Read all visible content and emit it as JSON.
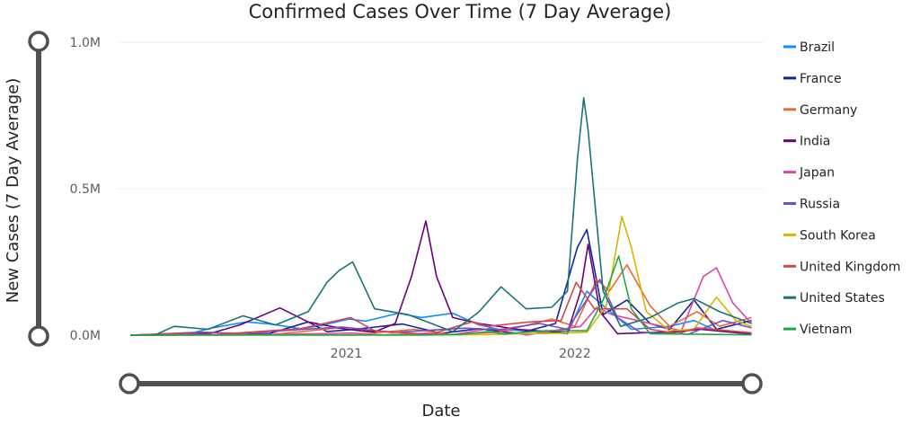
{
  "chart_data": {
    "type": "line",
    "title": "Confirmed Cases Over Time (7 Day Average)",
    "xlabel": "Date",
    "ylabel": "New Cases (7 Day Average)",
    "ylim": [
      0,
      1000000
    ],
    "xlim": [
      "2020-01-22",
      "2022-10-15"
    ],
    "y_ticks": [
      {
        "value": 0,
        "label": "0.0M"
      },
      {
        "value": 500000,
        "label": "0.5M"
      },
      {
        "value": 1000000,
        "label": "1.0M"
      }
    ],
    "x_ticks": [
      {
        "value": "2021-01-01",
        "label": "2021"
      },
      {
        "value": "2022-01-01",
        "label": "2022"
      }
    ],
    "grid": true,
    "legend_position": "right",
    "series": [
      {
        "name": "Brazil",
        "color": "#118dff",
        "points": [
          [
            "2020-01-22",
            0
          ],
          [
            "2020-03-15",
            1000
          ],
          [
            "2020-05-01",
            8000
          ],
          [
            "2020-06-01",
            25000
          ],
          [
            "2020-07-25",
            45000
          ],
          [
            "2020-09-01",
            38000
          ],
          [
            "2020-10-20",
            22000
          ],
          [
            "2020-11-20",
            32000
          ],
          [
            "2021-01-05",
            55000
          ],
          [
            "2021-02-01",
            48000
          ],
          [
            "2021-03-25",
            75000
          ],
          [
            "2021-05-01",
            60000
          ],
          [
            "2021-06-20",
            75000
          ],
          [
            "2021-08-01",
            35000
          ],
          [
            "2021-09-01",
            20000
          ],
          [
            "2021-11-15",
            10000
          ],
          [
            "2021-12-20",
            5000
          ],
          [
            "2022-01-20",
            150000
          ],
          [
            "2022-02-10",
            110000
          ],
          [
            "2022-04-01",
            20000
          ],
          [
            "2022-06-01",
            30000
          ],
          [
            "2022-07-10",
            50000
          ],
          [
            "2022-08-10",
            20000
          ],
          [
            "2022-10-10",
            8000
          ]
        ]
      },
      {
        "name": "France",
        "color": "#12239e",
        "points": [
          [
            "2020-01-22",
            0
          ],
          [
            "2020-03-01",
            0
          ],
          [
            "2020-04-01",
            4000
          ],
          [
            "2020-06-15",
            500
          ],
          [
            "2020-09-01",
            6000
          ],
          [
            "2020-11-01",
            45000
          ],
          [
            "2020-12-01",
            12000
          ],
          [
            "2021-01-15",
            20000
          ],
          [
            "2021-04-01",
            38000
          ],
          [
            "2021-06-01",
            6000
          ],
          [
            "2021-08-01",
            22000
          ],
          [
            "2021-10-01",
            5000
          ],
          [
            "2021-12-01",
            40000
          ],
          [
            "2022-01-05",
            300000
          ],
          [
            "2022-01-20",
            360000
          ],
          [
            "2022-02-15",
            70000
          ],
          [
            "2022-03-25",
            120000
          ],
          [
            "2022-05-01",
            40000
          ],
          [
            "2022-06-01",
            20000
          ],
          [
            "2022-07-10",
            120000
          ],
          [
            "2022-08-15",
            20000
          ],
          [
            "2022-10-10",
            50000
          ]
        ]
      },
      {
        "name": "Germany",
        "color": "#e66c37",
        "points": [
          [
            "2020-01-22",
            0
          ],
          [
            "2020-03-20",
            4000
          ],
          [
            "2020-05-01",
            1000
          ],
          [
            "2020-09-01",
            1500
          ],
          [
            "2020-12-20",
            25000
          ],
          [
            "2021-02-15",
            8000
          ],
          [
            "2021-04-20",
            20000
          ],
          [
            "2021-06-15",
            2000
          ],
          [
            "2021-09-01",
            10000
          ],
          [
            "2021-11-25",
            55000
          ],
          [
            "2022-01-01",
            30000
          ],
          [
            "2022-02-05",
            190000
          ],
          [
            "2022-02-25",
            150000
          ],
          [
            "2022-03-25",
            240000
          ],
          [
            "2022-05-01",
            100000
          ],
          [
            "2022-06-01",
            30000
          ],
          [
            "2022-07-15",
            80000
          ],
          [
            "2022-08-20",
            30000
          ],
          [
            "2022-10-10",
            60000
          ]
        ]
      },
      {
        "name": "India",
        "color": "#6b007b",
        "points": [
          [
            "2020-01-22",
            0
          ],
          [
            "2020-04-01",
            0
          ],
          [
            "2020-06-01",
            8000
          ],
          [
            "2020-07-15",
            35000
          ],
          [
            "2020-09-17",
            93000
          ],
          [
            "2020-11-01",
            45000
          ],
          [
            "2021-01-01",
            20000
          ],
          [
            "2021-02-15",
            11000
          ],
          [
            "2021-03-20",
            40000
          ],
          [
            "2021-04-15",
            200000
          ],
          [
            "2021-05-08",
            390000
          ],
          [
            "2021-05-25",
            200000
          ],
          [
            "2021-06-20",
            60000
          ],
          [
            "2021-08-01",
            40000
          ],
          [
            "2021-10-01",
            20000
          ],
          [
            "2021-12-20",
            8000
          ],
          [
            "2022-01-10",
            150000
          ],
          [
            "2022-01-22",
            310000
          ],
          [
            "2022-02-10",
            80000
          ],
          [
            "2022-03-10",
            5000
          ],
          [
            "2022-06-15",
            12000
          ],
          [
            "2022-07-20",
            20000
          ],
          [
            "2022-10-10",
            3000
          ]
        ]
      },
      {
        "name": "Japan",
        "color": "#e044a7",
        "points": [
          [
            "2020-01-22",
            0
          ],
          [
            "2020-07-01",
            500
          ],
          [
            "2020-08-05",
            1200
          ],
          [
            "2021-01-10",
            7000
          ],
          [
            "2021-03-01",
            1000
          ],
          [
            "2021-05-10",
            6500
          ],
          [
            "2021-06-20",
            1500
          ],
          [
            "2021-08-20",
            23000
          ],
          [
            "2021-10-15",
            200
          ],
          [
            "2022-01-10",
            30000
          ],
          [
            "2022-02-05",
            95000
          ],
          [
            "2022-03-01",
            70000
          ],
          [
            "2022-05-01",
            40000
          ],
          [
            "2022-06-20",
            15000
          ],
          [
            "2022-07-25",
            200000
          ],
          [
            "2022-08-15",
            230000
          ],
          [
            "2022-09-10",
            110000
          ],
          [
            "2022-10-10",
            40000
          ]
        ]
      },
      {
        "name": "Russia",
        "color": "#744ec2",
        "points": [
          [
            "2020-01-22",
            0
          ],
          [
            "2020-05-15",
            10000
          ],
          [
            "2020-07-15",
            6000
          ],
          [
            "2020-12-25",
            28000
          ],
          [
            "2021-03-15",
            9000
          ],
          [
            "2021-07-10",
            24000
          ],
          [
            "2021-09-01",
            18000
          ],
          [
            "2021-11-05",
            40000
          ],
          [
            "2021-12-20",
            20000
          ],
          [
            "2022-02-10",
            190000
          ],
          [
            "2022-03-10",
            60000
          ],
          [
            "2022-04-15",
            10000
          ],
          [
            "2022-07-01",
            3000
          ],
          [
            "2022-08-25",
            50000
          ],
          [
            "2022-10-10",
            25000
          ]
        ]
      },
      {
        "name": "South Korea",
        "color": "#d9b300",
        "points": [
          [
            "2020-01-22",
            0
          ],
          [
            "2020-03-01",
            600
          ],
          [
            "2021-08-01",
            1500
          ],
          [
            "2021-12-15",
            7000
          ],
          [
            "2022-01-20",
            10000
          ],
          [
            "2022-02-20",
            100000
          ],
          [
            "2022-03-17",
            405000
          ],
          [
            "2022-04-01",
            300000
          ],
          [
            "2022-04-25",
            80000
          ],
          [
            "2022-06-01",
            15000
          ],
          [
            "2022-07-10",
            20000
          ],
          [
            "2022-08-15",
            130000
          ],
          [
            "2022-09-15",
            50000
          ],
          [
            "2022-10-10",
            30000
          ]
        ]
      },
      {
        "name": "United Kingdom",
        "color": "#d64550",
        "points": [
          [
            "2020-01-22",
            0
          ],
          [
            "2020-04-01",
            5000
          ],
          [
            "2020-06-01",
            1500
          ],
          [
            "2020-10-20",
            22000
          ],
          [
            "2021-01-08",
            60000
          ],
          [
            "2021-02-15",
            15000
          ],
          [
            "2021-05-15",
            2000
          ],
          [
            "2021-07-20",
            45000
          ],
          [
            "2021-08-15",
            30000
          ],
          [
            "2021-10-20",
            45000
          ],
          [
            "2021-12-10",
            50000
          ],
          [
            "2022-01-03",
            180000
          ],
          [
            "2022-02-01",
            90000
          ],
          [
            "2022-03-25",
            90000
          ],
          [
            "2022-05-01",
            20000
          ],
          [
            "2022-06-15",
            5000
          ],
          [
            "2022-07-15",
            25000
          ],
          [
            "2022-10-10",
            8000
          ]
        ]
      },
      {
        "name": "United States",
        "color": "#197278",
        "points": [
          [
            "2020-01-22",
            0
          ],
          [
            "2020-03-01",
            0
          ],
          [
            "2020-04-01",
            30000
          ],
          [
            "2020-05-25",
            20000
          ],
          [
            "2020-07-20",
            66000
          ],
          [
            "2020-09-10",
            35000
          ],
          [
            "2020-11-01",
            80000
          ],
          [
            "2020-12-01",
            180000
          ],
          [
            "2020-12-20",
            220000
          ],
          [
            "2021-01-11",
            250000
          ],
          [
            "2021-02-15",
            90000
          ],
          [
            "2021-04-10",
            70000
          ],
          [
            "2021-06-20",
            12000
          ],
          [
            "2021-08-01",
            80000
          ],
          [
            "2021-09-05",
            165000
          ],
          [
            "2021-10-15",
            90000
          ],
          [
            "2021-11-25",
            95000
          ],
          [
            "2021-12-20",
            150000
          ],
          [
            "2022-01-05",
            600000
          ],
          [
            "2022-01-15",
            810000
          ],
          [
            "2022-01-22",
            700000
          ],
          [
            "2022-02-15",
            150000
          ],
          [
            "2022-03-15",
            30000
          ],
          [
            "2022-05-01",
            60000
          ],
          [
            "2022-06-15",
            110000
          ],
          [
            "2022-07-10",
            125000
          ],
          [
            "2022-08-20",
            80000
          ],
          [
            "2022-10-10",
            40000
          ]
        ]
      },
      {
        "name": "Vietnam",
        "color": "#1aab40",
        "points": [
          [
            "2020-01-22",
            0
          ],
          [
            "2021-05-01",
            200
          ],
          [
            "2021-07-01",
            2000
          ],
          [
            "2021-08-15",
            12000
          ],
          [
            "2021-09-10",
            4000
          ],
          [
            "2021-11-15",
            15000
          ],
          [
            "2022-01-20",
            15000
          ],
          [
            "2022-02-15",
            120000
          ],
          [
            "2022-03-12",
            270000
          ],
          [
            "2022-04-01",
            90000
          ],
          [
            "2022-05-01",
            5000
          ],
          [
            "2022-10-10",
            1000
          ]
        ]
      }
    ]
  }
}
